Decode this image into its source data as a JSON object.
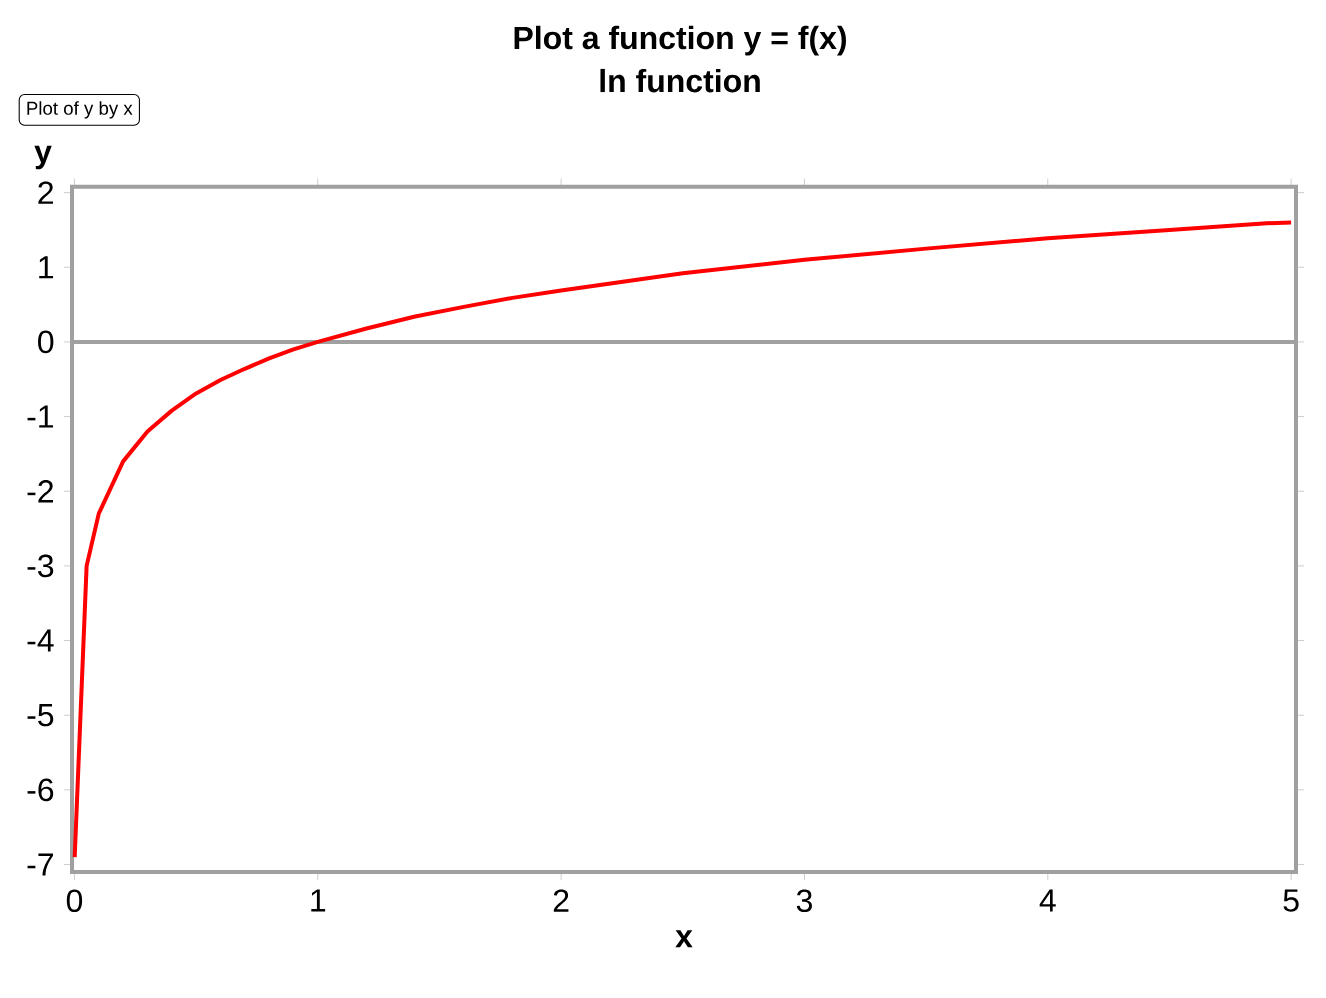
{
  "chart_data": {
    "type": "line",
    "title": "Plot a function y = f(x)",
    "subtitle": "ln function",
    "xlabel": "x",
    "ylabel": "y",
    "annotations": [
      "Plot of y by x"
    ],
    "series": [
      {
        "color": "#ff0000",
        "x": [
          0.001,
          0.05,
          0.1,
          0.2,
          0.3,
          0.4,
          0.5,
          0.6,
          0.7,
          0.8,
          0.9,
          1,
          1.2,
          1.4,
          1.6,
          1.8,
          2,
          2.5,
          3,
          3.5,
          4,
          4.5,
          4.9,
          5
        ],
        "values": [
          -6.9,
          -3.0,
          -2.3,
          -1.6,
          -1.2,
          -0.92,
          -0.69,
          -0.51,
          -0.36,
          -0.22,
          -0.1,
          0,
          0.18,
          0.34,
          0.47,
          0.59,
          0.69,
          0.92,
          1.1,
          1.25,
          1.39,
          1.5,
          1.59,
          1.6
        ]
      }
    ],
    "xlim": [
      -0.01,
      5.02
    ],
    "ylim": [
      -7.1,
      2.08
    ],
    "xticks": [
      0,
      1,
      2,
      3,
      4,
      5
    ],
    "yticks": [
      -7,
      -6,
      -5,
      -4,
      -3,
      -2,
      -1,
      0,
      1,
      2
    ],
    "ref_lines": [
      {
        "axis": "y",
        "value": 0,
        "color": "#a0a0a0"
      }
    ],
    "grid": false,
    "marker": "none",
    "line_style": "solid"
  }
}
